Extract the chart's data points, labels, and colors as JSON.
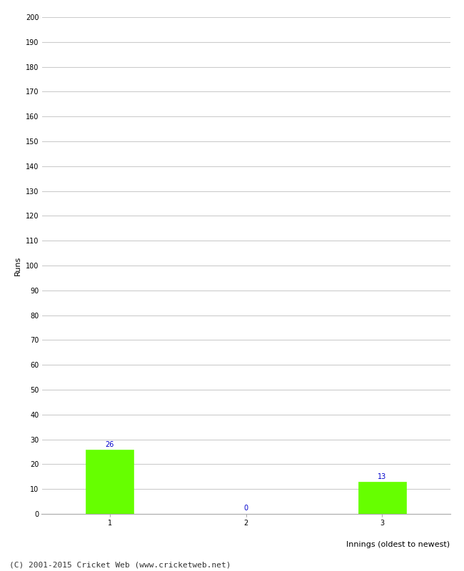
{
  "categories": [
    "1",
    "2",
    "3"
  ],
  "values": [
    26,
    0,
    13
  ],
  "bar_color": "#66ff00",
  "bar_edge_color": "#66ff00",
  "ylabel": "Runs",
  "xlabel": "Innings (oldest to newest)",
  "ylim": [
    0,
    200
  ],
  "yticks": [
    0,
    10,
    20,
    30,
    40,
    50,
    60,
    70,
    80,
    90,
    100,
    110,
    120,
    130,
    140,
    150,
    160,
    170,
    180,
    190,
    200
  ],
  "annotation_color": "#0000cc",
  "annotation_fontsize": 7,
  "footer": "(C) 2001-2015 Cricket Web (www.cricketweb.net)",
  "footer_fontsize": 8,
  "background_color": "#ffffff",
  "grid_color": "#cccccc",
  "tick_fontsize": 7,
  "label_fontsize": 8,
  "bar_width": 0.35
}
